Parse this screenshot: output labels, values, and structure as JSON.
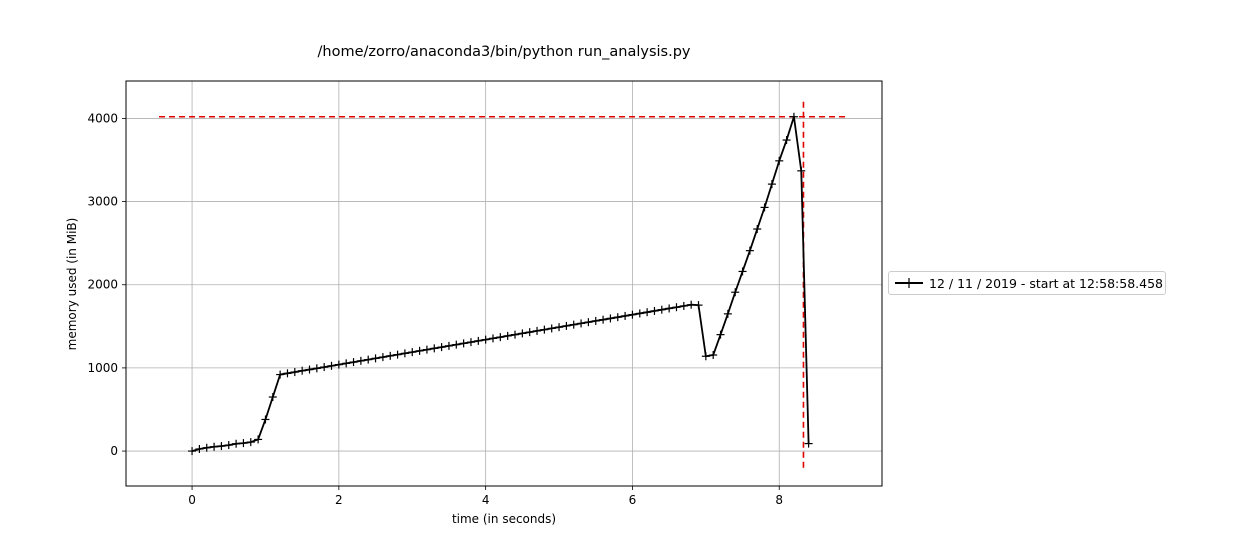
{
  "chart_data": {
    "type": "line",
    "title": "/home/zorro/anaconda3/bin/python run_analysis.py",
    "xlabel": "time (in seconds)",
    "ylabel": "memory used (in MiB)",
    "xlim": [
      -0.9,
      9.4
    ],
    "ylim": [
      -420,
      4450
    ],
    "xticks": [
      0,
      2,
      4,
      6,
      8
    ],
    "xtick_labels": [
      "0",
      "2",
      "4",
      "6",
      "8"
    ],
    "yticks": [
      0,
      1000,
      2000,
      3000,
      4000
    ],
    "ytick_labels": [
      "0",
      "1000",
      "2000",
      "3000",
      "4000"
    ],
    "grid": true,
    "legend_position": "center-right, outside the plot",
    "series": [
      {
        "name": "12 / 11 / 2019 - start at 12:58:58.458",
        "color": "#000000",
        "marker": "+",
        "x": [
          0.0,
          0.1,
          0.2,
          0.3,
          0.4,
          0.5,
          0.6,
          0.7,
          0.8,
          0.9,
          1.0,
          1.1,
          1.2,
          1.3,
          1.4,
          1.5,
          1.6,
          1.7,
          1.8,
          1.9,
          2.0,
          2.1,
          2.2,
          2.3,
          2.4,
          2.5,
          2.6,
          2.7,
          2.8,
          2.9,
          3.0,
          3.1,
          3.2,
          3.3,
          3.4,
          3.5,
          3.6,
          3.7,
          3.8,
          3.9,
          4.0,
          4.1,
          4.2,
          4.3,
          4.4,
          4.5,
          4.6,
          4.7,
          4.8,
          4.9,
          5.0,
          5.1,
          5.2,
          5.3,
          5.4,
          5.5,
          5.6,
          5.7,
          5.8,
          5.9,
          6.0,
          6.1,
          6.2,
          6.3,
          6.4,
          6.5,
          6.6,
          6.7,
          6.8,
          6.9,
          7.0,
          7.1,
          7.2,
          7.3,
          7.4,
          7.5,
          7.6,
          7.7,
          7.8,
          7.9,
          8.0,
          8.1,
          8.2,
          8.3,
          8.4,
          8.5
        ],
        "y": [
          0,
          25,
          40,
          52,
          60,
          72,
          88,
          96,
          108,
          140,
          380,
          650,
          920,
          935,
          950,
          966,
          980,
          995,
          1010,
          1025,
          1040,
          1055,
          1070,
          1085,
          1100,
          1115,
          1130,
          1145,
          1160,
          1175,
          1190,
          1205,
          1220,
          1235,
          1250,
          1265,
          1280,
          1295,
          1310,
          1325,
          1340,
          1355,
          1370,
          1385,
          1400,
          1415,
          1430,
          1445,
          1460,
          1475,
          1490,
          1505,
          1520,
          1535,
          1550,
          1565,
          1580,
          1595,
          1610,
          1625,
          1640,
          1655,
          1670,
          1685,
          1700,
          1715,
          1730,
          1745,
          1760,
          1755,
          1140,
          1155,
          1400,
          1650,
          1910,
          2160,
          2410,
          2670,
          2930,
          3210,
          3490,
          3740,
          4020,
          3370,
          90,
          null
        ]
      }
    ],
    "reference_lines": [
      {
        "orientation": "horizontal",
        "y": 4020,
        "x_range": [
          -0.45,
          8.95
        ],
        "color": "#e00000",
        "style": "dashed"
      },
      {
        "orientation": "vertical",
        "x": 8.33,
        "y_range": [
          -200,
          4220
        ],
        "color": "#e00000",
        "style": "dashed"
      }
    ]
  }
}
